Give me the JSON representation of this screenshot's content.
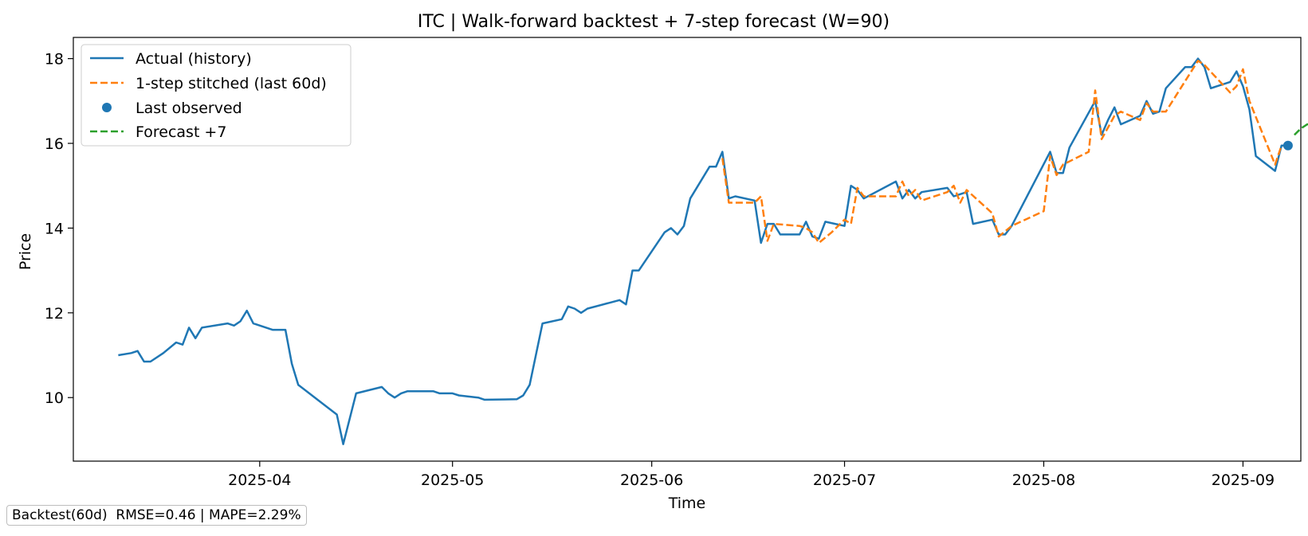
{
  "chart_data": {
    "type": "line",
    "title": "ITC | Walk-forward backtest + 7-step forecast (W=90)",
    "xlabel": "Time",
    "ylabel": "Price",
    "xlim": [
      "2025-03-03",
      "2025-09-10"
    ],
    "ylim": [
      8.5,
      18.5
    ],
    "x_ticks": [
      "2025-04-01",
      "2025-05-01",
      "2025-06-01",
      "2025-07-01",
      "2025-08-01",
      "2025-09-01"
    ],
    "x_tick_labels": [
      "2025-04",
      "2025-05",
      "2025-06",
      "2025-07",
      "2025-08",
      "2025-09"
    ],
    "y_ticks": [
      10,
      12,
      14,
      16,
      18
    ],
    "grid": false,
    "legend_position": "top-left",
    "series": [
      {
        "name": "Actual (history)",
        "color": "#1f77b4",
        "style": "solid",
        "points": [
          [
            "2025-03-10",
            11.0
          ],
          [
            "2025-03-12",
            11.05
          ],
          [
            "2025-03-13",
            11.1
          ],
          [
            "2025-03-14",
            10.85
          ],
          [
            "2025-03-15",
            10.85
          ],
          [
            "2025-03-17",
            11.05
          ],
          [
            "2025-03-19",
            11.3
          ],
          [
            "2025-03-20",
            11.25
          ],
          [
            "2025-03-21",
            11.65
          ],
          [
            "2025-03-22",
            11.4
          ],
          [
            "2025-03-23",
            11.65
          ],
          [
            "2025-03-27",
            11.75
          ],
          [
            "2025-03-28",
            11.7
          ],
          [
            "2025-03-29",
            11.8
          ],
          [
            "2025-03-30",
            12.05
          ],
          [
            "2025-03-31",
            11.75
          ],
          [
            "2025-04-03",
            11.6
          ],
          [
            "2025-04-04",
            11.6
          ],
          [
            "2025-04-05",
            11.6
          ],
          [
            "2025-04-06",
            10.8
          ],
          [
            "2025-04-07",
            10.3
          ],
          [
            "2025-04-10",
            9.95
          ],
          [
            "2025-04-13",
            9.6
          ],
          [
            "2025-04-14",
            8.9
          ],
          [
            "2025-04-15",
            9.5
          ],
          [
            "2025-04-16",
            10.1
          ],
          [
            "2025-04-20",
            10.25
          ],
          [
            "2025-04-21",
            10.1
          ],
          [
            "2025-04-22",
            10.0
          ],
          [
            "2025-04-23",
            10.1
          ],
          [
            "2025-04-24",
            10.15
          ],
          [
            "2025-04-28",
            10.15
          ],
          [
            "2025-04-29",
            10.1
          ],
          [
            "2025-05-01",
            10.1
          ],
          [
            "2025-05-02",
            10.05
          ],
          [
            "2025-05-05",
            10.0
          ],
          [
            "2025-05-06",
            9.95
          ],
          [
            "2025-05-11",
            9.96
          ],
          [
            "2025-05-12",
            10.05
          ],
          [
            "2025-05-13",
            10.3
          ],
          [
            "2025-05-15",
            11.75
          ],
          [
            "2025-05-18",
            11.85
          ],
          [
            "2025-05-19",
            12.15
          ],
          [
            "2025-05-20",
            12.1
          ],
          [
            "2025-05-21",
            12.0
          ],
          [
            "2025-05-22",
            12.1
          ],
          [
            "2025-05-27",
            12.3
          ],
          [
            "2025-05-28",
            12.2
          ],
          [
            "2025-05-29",
            13.0
          ],
          [
            "2025-05-30",
            13.0
          ],
          [
            "2025-06-03",
            13.9
          ],
          [
            "2025-06-04",
            14.0
          ],
          [
            "2025-06-05",
            13.85
          ],
          [
            "2025-06-06",
            14.05
          ],
          [
            "2025-06-07",
            14.7
          ],
          [
            "2025-06-10",
            15.45
          ],
          [
            "2025-06-11",
            15.45
          ],
          [
            "2025-06-12",
            15.8
          ],
          [
            "2025-06-13",
            14.7
          ],
          [
            "2025-06-14",
            14.75
          ],
          [
            "2025-06-17",
            14.65
          ],
          [
            "2025-06-18",
            13.65
          ],
          [
            "2025-06-19",
            14.1
          ],
          [
            "2025-06-20",
            14.1
          ],
          [
            "2025-06-21",
            13.85
          ],
          [
            "2025-06-24",
            13.85
          ],
          [
            "2025-06-25",
            14.15
          ],
          [
            "2025-06-26",
            13.8
          ],
          [
            "2025-06-27",
            13.75
          ],
          [
            "2025-06-28",
            14.15
          ],
          [
            "2025-07-01",
            14.05
          ],
          [
            "2025-07-02",
            15.0
          ],
          [
            "2025-07-03",
            14.9
          ],
          [
            "2025-07-04",
            14.7
          ],
          [
            "2025-07-09",
            15.1
          ],
          [
            "2025-07-10",
            14.7
          ],
          [
            "2025-07-11",
            14.9
          ],
          [
            "2025-07-12",
            14.7
          ],
          [
            "2025-07-13",
            14.85
          ],
          [
            "2025-07-17",
            14.95
          ],
          [
            "2025-07-18",
            14.75
          ],
          [
            "2025-07-19",
            14.8
          ],
          [
            "2025-07-20",
            14.85
          ],
          [
            "2025-07-21",
            14.1
          ],
          [
            "2025-07-24",
            14.2
          ],
          [
            "2025-07-25",
            13.85
          ],
          [
            "2025-07-26",
            13.85
          ],
          [
            "2025-07-27",
            14.05
          ],
          [
            "2025-08-02",
            15.8
          ],
          [
            "2025-08-03",
            15.3
          ],
          [
            "2025-08-04",
            15.3
          ],
          [
            "2025-08-05",
            15.9
          ],
          [
            "2025-08-09",
            17.0
          ],
          [
            "2025-08-10",
            16.2
          ],
          [
            "2025-08-11",
            16.55
          ],
          [
            "2025-08-12",
            16.85
          ],
          [
            "2025-08-13",
            16.45
          ],
          [
            "2025-08-16",
            16.65
          ],
          [
            "2025-08-17",
            17.0
          ],
          [
            "2025-08-18",
            16.7
          ],
          [
            "2025-08-19",
            16.75
          ],
          [
            "2025-08-20",
            17.3
          ],
          [
            "2025-08-23",
            17.8
          ],
          [
            "2025-08-24",
            17.8
          ],
          [
            "2025-08-25",
            18.0
          ],
          [
            "2025-08-26",
            17.8
          ],
          [
            "2025-08-27",
            17.3
          ],
          [
            "2025-08-30",
            17.45
          ],
          [
            "2025-08-31",
            17.7
          ],
          [
            "2025-09-01",
            17.35
          ],
          [
            "2025-09-02",
            16.8
          ],
          [
            "2025-09-03",
            15.7
          ],
          [
            "2025-09-06",
            15.35
          ],
          [
            "2025-09-07",
            15.95
          ],
          [
            "2025-09-08",
            15.95
          ]
        ]
      },
      {
        "name": "1-step stitched (last 60d)",
        "color": "#ff7f0e",
        "style": "dashed",
        "points": [
          [
            "2025-06-12",
            15.65
          ],
          [
            "2025-06-13",
            14.6
          ],
          [
            "2025-06-17",
            14.6
          ],
          [
            "2025-06-18",
            14.75
          ],
          [
            "2025-06-19",
            13.7
          ],
          [
            "2025-06-20",
            14.1
          ],
          [
            "2025-06-24",
            14.05
          ],
          [
            "2025-06-25",
            14.0
          ],
          [
            "2025-06-26",
            13.9
          ],
          [
            "2025-06-27",
            13.65
          ],
          [
            "2025-06-29",
            13.9
          ],
          [
            "2025-07-01",
            14.2
          ],
          [
            "2025-07-02",
            14.1
          ],
          [
            "2025-07-03",
            14.95
          ],
          [
            "2025-07-04",
            14.75
          ],
          [
            "2025-07-09",
            14.75
          ],
          [
            "2025-07-10",
            15.1
          ],
          [
            "2025-07-11",
            14.75
          ],
          [
            "2025-07-12",
            14.9
          ],
          [
            "2025-07-13",
            14.65
          ],
          [
            "2025-07-17",
            14.85
          ],
          [
            "2025-07-18",
            15.0
          ],
          [
            "2025-07-19",
            14.6
          ],
          [
            "2025-07-20",
            14.9
          ],
          [
            "2025-07-24",
            14.35
          ],
          [
            "2025-07-25",
            13.8
          ],
          [
            "2025-07-27",
            14.05
          ],
          [
            "2025-08-01",
            14.4
          ],
          [
            "2025-08-02",
            15.7
          ],
          [
            "2025-08-03",
            15.25
          ],
          [
            "2025-08-04",
            15.5
          ],
          [
            "2025-08-08",
            15.8
          ],
          [
            "2025-08-09",
            17.25
          ],
          [
            "2025-08-10",
            16.1
          ],
          [
            "2025-08-12",
            16.65
          ],
          [
            "2025-08-13",
            16.75
          ],
          [
            "2025-08-16",
            16.55
          ],
          [
            "2025-08-17",
            16.95
          ],
          [
            "2025-08-18",
            16.75
          ],
          [
            "2025-08-20",
            16.75
          ],
          [
            "2025-08-25",
            17.95
          ],
          [
            "2025-08-26",
            17.85
          ],
          [
            "2025-08-30",
            17.2
          ],
          [
            "2025-08-31",
            17.35
          ],
          [
            "2025-09-01",
            17.75
          ],
          [
            "2025-09-02",
            17.0
          ],
          [
            "2025-09-06",
            15.5
          ],
          [
            "2025-09-07",
            15.95
          ]
        ]
      },
      {
        "name": "Last observed",
        "color": "#1f77b4",
        "style": "marker",
        "points": [
          [
            "2025-09-08",
            15.95
          ]
        ]
      },
      {
        "name": "Forecast +7",
        "color": "#2ca02c",
        "style": "dashed",
        "points": [
          [
            "2025-09-09",
            16.2
          ],
          [
            "2025-09-10",
            16.35
          ],
          [
            "2025-09-11",
            16.45
          ],
          [
            "2025-09-12",
            16.45
          ],
          [
            "2025-09-13",
            16.35
          ],
          [
            "2025-09-14",
            16.15
          ],
          [
            "2025-09-15",
            15.9
          ]
        ]
      }
    ],
    "annotation": "Backtest(60d)  RMSE=0.46 | MAPE=2.29%"
  }
}
